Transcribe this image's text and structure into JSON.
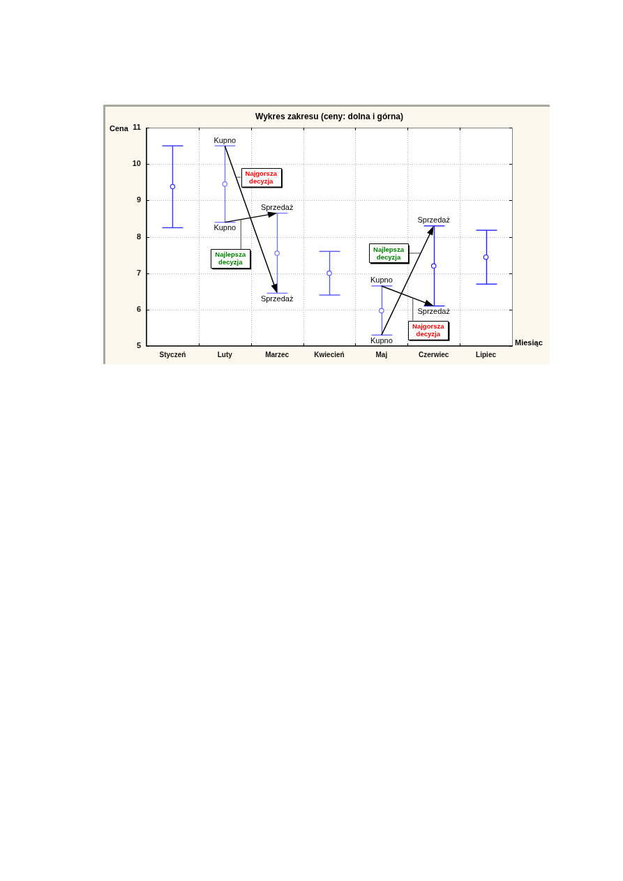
{
  "chart_data": {
    "type": "scatter",
    "title": "Wykres zakresu (ceny: dolna i górna)",
    "xlabel": "Miesiąc",
    "ylabel": "Cena",
    "categories": [
      "Styczeń",
      "Luty",
      "Marzec",
      "Kwiecień",
      "Maj",
      "Czerwiec",
      "Lipiec"
    ],
    "values": [
      9.38,
      9.45,
      7.55,
      7,
      5.97,
      7.2,
      7.44
    ],
    "errors": [
      [
        8.25,
        10.5
      ],
      [
        8.4,
        10.5
      ],
      [
        6.45,
        8.65
      ],
      [
        6.4,
        7.6
      ],
      [
        5.3,
        6.65
      ],
      [
        6.1,
        8.3
      ],
      [
        6.7,
        8.18
      ]
    ],
    "colors": [
      "#3333ff",
      "#7777ff",
      "#7777ff",
      "#5555ff",
      "#6666ff",
      "#2222ff",
      "#2222ff"
    ],
    "ylim": [
      5,
      11
    ],
    "yticks": [
      5,
      6,
      7,
      8,
      9,
      10,
      11
    ],
    "grid": true,
    "marker": "circle",
    "annotations": [
      {
        "text": "Kupno",
        "x": "Luty",
        "y": 10.5
      },
      {
        "text": "Sprzedaż",
        "x": "Marzec",
        "y": 6.45
      },
      {
        "text": "Kupno",
        "x": "Luty",
        "y": 8.4
      },
      {
        "text": "Sprzedaż",
        "x": "Marzec",
        "y": 8.65
      },
      {
        "text": "Kupno",
        "x": "Maj",
        "y": 5.3
      },
      {
        "text": "Sprzedaż",
        "x": "Czerwiec",
        "y": 8.3
      },
      {
        "text": "Kupno",
        "x": "Maj",
        "y": 6.65
      },
      {
        "text": "Sprzedaż",
        "x": "Czerwiec",
        "y": 6.1
      },
      "Najgorsza decyzja",
      "Najlepsza decyzja",
      "Najlepsza decyzja",
      "Najgorsza decyzja"
    ]
  }
}
